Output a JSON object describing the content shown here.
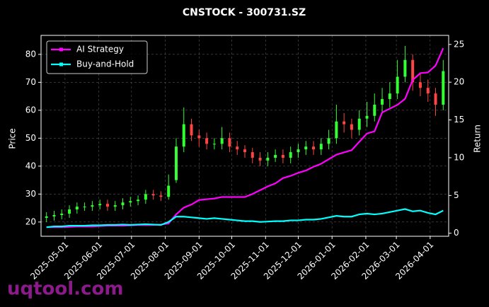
{
  "chart_data": {
    "type": "candlestick",
    "title": "CNSTOCK - 300731.SZ",
    "ylabel": "Price",
    "y2label": "Return",
    "watermark": "uqtool.com",
    "x": [
      "2025-04-14",
      "2025-04-21",
      "2025-04-28",
      "2025-05-05",
      "2025-05-12",
      "2025-05-19",
      "2025-05-26",
      "2025-06-02",
      "2025-06-09",
      "2025-06-16",
      "2025-06-23",
      "2025-06-30",
      "2025-07-07",
      "2025-07-14",
      "2025-07-21",
      "2025-07-28",
      "2025-08-04",
      "2025-08-11",
      "2025-08-18",
      "2025-08-25",
      "2025-09-01",
      "2025-09-08",
      "2025-09-15",
      "2025-09-22",
      "2025-09-29",
      "2025-10-06",
      "2025-10-13",
      "2025-10-20",
      "2025-10-27",
      "2025-11-03",
      "2025-11-10",
      "2025-11-17",
      "2025-11-24",
      "2025-12-01",
      "2025-12-08",
      "2025-12-15",
      "2025-12-22",
      "2025-12-29",
      "2026-01-05",
      "2026-01-12",
      "2026-01-19",
      "2026-01-26",
      "2026-02-02",
      "2026-02-09",
      "2026-02-16",
      "2026-02-23",
      "2026-03-02",
      "2026-03-09",
      "2026-03-16",
      "2026-03-23",
      "2026-03-30",
      "2026-04-06",
      "2026-04-13"
    ],
    "open": [
      21.5,
      22,
      22.5,
      23,
      24.5,
      25.5,
      25.5,
      26,
      26.5,
      25.5,
      26,
      27,
      27.5,
      28,
      30,
      29.5,
      29,
      35,
      47,
      55,
      51,
      50,
      48,
      48,
      50,
      47,
      46,
      45,
      43,
      42,
      43,
      44,
      43,
      45,
      46,
      47,
      46,
      48,
      50,
      56,
      55,
      53,
      57,
      58,
      62,
      64,
      66,
      72,
      78,
      70,
      68,
      66,
      62
    ],
    "high": [
      23.5,
      24,
      24.5,
      26,
      27,
      27,
      27.5,
      28,
      28,
      27.5,
      28.5,
      29,
      29.5,
      31.5,
      31.5,
      31,
      37,
      50,
      61,
      57,
      53,
      52,
      50,
      54,
      52,
      49,
      47.5,
      46.5,
      45,
      45,
      46,
      46,
      47,
      48,
      49,
      49,
      50,
      53,
      62,
      59,
      57,
      60,
      63,
      66,
      68,
      70,
      78,
      83,
      80,
      73,
      71,
      68,
      78
    ],
    "low": [
      20,
      20.5,
      21,
      21.5,
      23,
      24,
      24,
      24.5,
      24,
      24,
      24.5,
      25.5,
      26,
      26.5,
      28,
      27.5,
      28,
      34,
      45,
      49,
      47,
      46,
      46,
      46,
      45,
      44,
      43,
      41,
      40,
      40,
      41.5,
      41,
      41,
      43,
      44,
      44,
      44,
      46,
      48,
      52,
      50,
      51,
      54,
      56,
      59,
      61,
      64,
      70,
      67,
      65,
      63,
      58,
      60
    ],
    "close": [
      22,
      22.5,
      23,
      24.5,
      25.5,
      25.5,
      26,
      26.5,
      25.5,
      26,
      27,
      27.5,
      28,
      30,
      29.5,
      29,
      33,
      47,
      55,
      51,
      50,
      48,
      48,
      50,
      47,
      46,
      45,
      43,
      42,
      43,
      44,
      43,
      45,
      46,
      47,
      46,
      48,
      50,
      56,
      55,
      53,
      57,
      58,
      62,
      64,
      66,
      72,
      78,
      70,
      68,
      66,
      62,
      74
    ],
    "up_color": "#33ff33",
    "down_color": "#ff4444",
    "series": [
      {
        "name": "AI Strategy",
        "color": "#ff00ff",
        "axis": "y2",
        "values": [
          0.8,
          0.8,
          0.8,
          0.85,
          0.9,
          0.9,
          0.9,
          0.95,
          1,
          1,
          1,
          1.05,
          1.1,
          1.1,
          1.1,
          1.15,
          1.3,
          2.5,
          3.4,
          3.8,
          4.4,
          4.5,
          4.6,
          4.8,
          4.8,
          4.8,
          4.8,
          5.2,
          5.7,
          6.2,
          6.6,
          7.3,
          7.6,
          8,
          8.3,
          8.8,
          9.2,
          9.8,
          10.4,
          10.7,
          11,
          12.1,
          13.2,
          13.5,
          16,
          16.5,
          17,
          17.8,
          20.3,
          21.2,
          21.3,
          22.2,
          24.5
        ]
      },
      {
        "name": "Buy-and-Hold",
        "color": "#00ffff",
        "axis": "y2",
        "values": [
          0.8,
          0.9,
          0.9,
          1,
          1,
          1,
          1.05,
          1.05,
          1.1,
          1.1,
          1.15,
          1.1,
          1.15,
          1.2,
          1.15,
          1.1,
          1.5,
          2.2,
          2.2,
          2.1,
          2,
          1.9,
          2,
          1.9,
          1.8,
          1.7,
          1.6,
          1.6,
          1.5,
          1.55,
          1.6,
          1.6,
          1.7,
          1.7,
          1.8,
          1.8,
          1.9,
          2.1,
          2.3,
          2.2,
          2.2,
          2.5,
          2.6,
          2.5,
          2.6,
          2.8,
          3,
          3.2,
          2.9,
          3,
          2.7,
          2.5,
          3
        ]
      }
    ],
    "xlim": [
      "2025-04-09",
      "2026-04-18"
    ],
    "xticks": [
      "2025-05-01",
      "2025-06-01",
      "2025-07-01",
      "2025-08-01",
      "2025-09-01",
      "2025-10-01",
      "2025-11-01",
      "2025-12-01",
      "2026-01-01",
      "2026-02-01",
      "2026-03-01",
      "2026-04-01"
    ],
    "ylim": [
      14.9,
      86.8
    ],
    "yticks": [
      20,
      30,
      40,
      50,
      60,
      70,
      80
    ],
    "y2lim": [
      -0.4,
      26.2
    ],
    "y2ticks": [
      0,
      5,
      10,
      15,
      20,
      25
    ],
    "grid": true,
    "legend": "upper left"
  }
}
